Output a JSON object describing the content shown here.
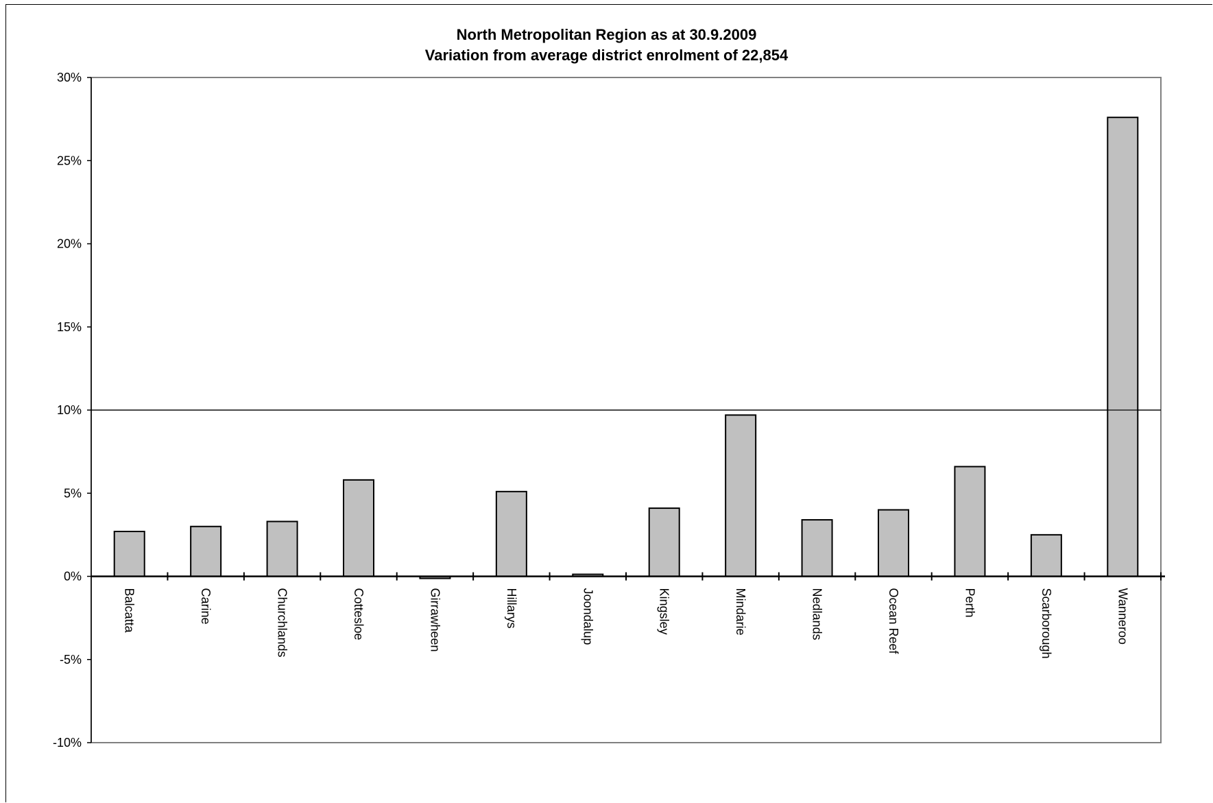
{
  "chart_data": {
    "type": "bar",
    "title": "North Metropolitan Region as at 30.9.2009",
    "subtitle": "Variation from average district enrolment of 22,854",
    "xlabel": "",
    "ylabel": "",
    "categories": [
      "Balcatta",
      "Carine",
      "Churchlands",
      "Cottesloe",
      "Girrawheen",
      "Hillarys",
      "Joondalup",
      "Kingsley",
      "Mindarie",
      "Nedlands",
      "Ocean Reef",
      "Perth",
      "Scarborough",
      "Wanneroo"
    ],
    "values": [
      2.7,
      3.0,
      3.3,
      5.8,
      -0.05,
      5.1,
      0.1,
      4.1,
      9.7,
      3.4,
      4.0,
      6.6,
      2.5,
      27.6
    ],
    "ylim": [
      -10,
      30
    ],
    "yticks": [
      "30%",
      "25%",
      "20%",
      "15%",
      "10%",
      "5%",
      "0%",
      "-5%",
      "-10%"
    ],
    "ytick_values": [
      30,
      25,
      20,
      15,
      10,
      5,
      0,
      -5,
      -10
    ],
    "reference_line": 10,
    "grid": false,
    "legend": "none",
    "colors": {
      "bar_fill": "#c0c0c0",
      "bar_stroke": "#000000",
      "plot_border": "#808080"
    }
  }
}
